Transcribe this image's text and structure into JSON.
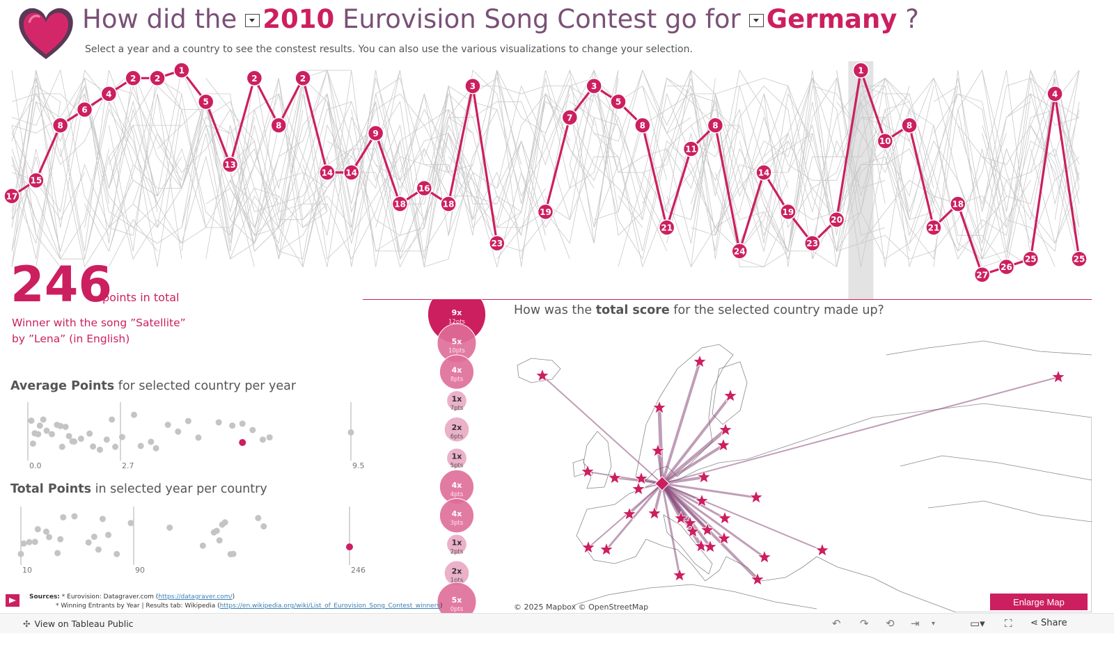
{
  "header": {
    "title_prefix": "How did the",
    "year": "2010",
    "title_middle": "Eurovision Song Contest go for",
    "country": "Germany",
    "title_suffix": "?",
    "subtitle": "Select a year and a country to see  the constest results. You can also use the various visualizations to change your selection."
  },
  "summary": {
    "total": "246",
    "total_label": "points in total",
    "winner_line1": "Winner with the song ”Satellite”",
    "winner_line2": "by ”Lena” (in English)"
  },
  "avg_section": {
    "title_bold": "Average Points",
    "title_rest": "for selected country per year"
  },
  "tot_section": {
    "title_bold": "Total Points",
    "title_rest": "in selected year per country"
  },
  "map": {
    "title_pre": "How was the",
    "title_bold": "total score",
    "title_post": "for the selected country made up?",
    "attribution": "© 2025 Mapbox  © OpenStreetMap",
    "enlarge_label": "Enlarge Map"
  },
  "sources": {
    "label": "Sources:",
    "line1_text": "* Eurovision: Datagraver.com (",
    "line1_link": "https://datagraver.com/",
    "line1_end": ")",
    "line2_text": "* Winning Entrants by Year | Results tab: Wikipedia (",
    "line2_link": "https://en.wikipedia.org/wiki/List_of_Eurovision_Song_Contest_winners",
    "line2_end": ")"
  },
  "footer": {
    "tableau_label": "View on Tableau Public",
    "share_label": "Share"
  },
  "colors": {
    "accent": "#cc1f5f",
    "title_purple": "#7a5077",
    "grey_lines": "#c8c8c8",
    "highlight_band": "#e3e3e3"
  },
  "chart_data": [
    {
      "type": "line",
      "description_of_axis": "Final rank of Germany per contest year (rank 1 at top)",
      "ranks": [
        17,
        15,
        8,
        6,
        4,
        2,
        2,
        1,
        5,
        13,
        2,
        8,
        2,
        14,
        14,
        9,
        18,
        16,
        18,
        3,
        23,
        null,
        19,
        7,
        3,
        5,
        8,
        21,
        11,
        8,
        24,
        14,
        19,
        23,
        20,
        1,
        10,
        8,
        21,
        18,
        27,
        26,
        25,
        4,
        25
      ],
      "selected_index": 35,
      "selected_label": "2010"
    },
    {
      "type": "scatter",
      "tick_labels": [
        "0.0",
        "2.7",
        "9.5"
      ],
      "xlim": [
        0,
        9.5
      ],
      "selected_value": 6.3,
      "values": [
        0.1,
        0.15,
        0.2,
        0.3,
        0.35,
        0.45,
        0.55,
        0.7,
        0.85,
        0.95,
        1.0,
        1.1,
        1.2,
        1.3,
        1.35,
        1.55,
        1.8,
        1.9,
        2.1,
        2.3,
        2.45,
        2.55,
        2.75,
        3.1,
        3.3,
        3.6,
        3.75,
        4.1,
        4.4,
        4.7,
        5.0,
        5.6,
        6.0,
        6.3,
        6.6,
        6.9,
        7.1,
        9.5
      ]
    },
    {
      "type": "scatter",
      "tick_labels": [
        "10",
        "90",
        "246"
      ],
      "xlim": [
        10,
        246
      ],
      "selected_value": 246,
      "values": [
        10,
        12,
        16,
        20,
        22,
        28,
        30,
        36,
        38,
        40,
        48,
        58,
        62,
        65,
        68,
        72,
        78,
        88,
        116,
        140,
        148,
        150,
        152,
        154,
        156,
        160,
        162,
        180,
        184
      ]
    },
    {
      "type": "bar",
      "categories": [
        "12pts",
        "10pts",
        "8pts",
        "7pts",
        "6pts",
        "5pts",
        "4pts",
        "3pts",
        "2pts",
        "1pts",
        "0pts"
      ],
      "counts": [
        "9x",
        "5x",
        "4x",
        "1x",
        "2x",
        "1x",
        "4x",
        "4x",
        "1x",
        "2x",
        "5x"
      ],
      "values": [
        9,
        5,
        4,
        1,
        2,
        1,
        4,
        4,
        1,
        2,
        5
      ]
    }
  ]
}
